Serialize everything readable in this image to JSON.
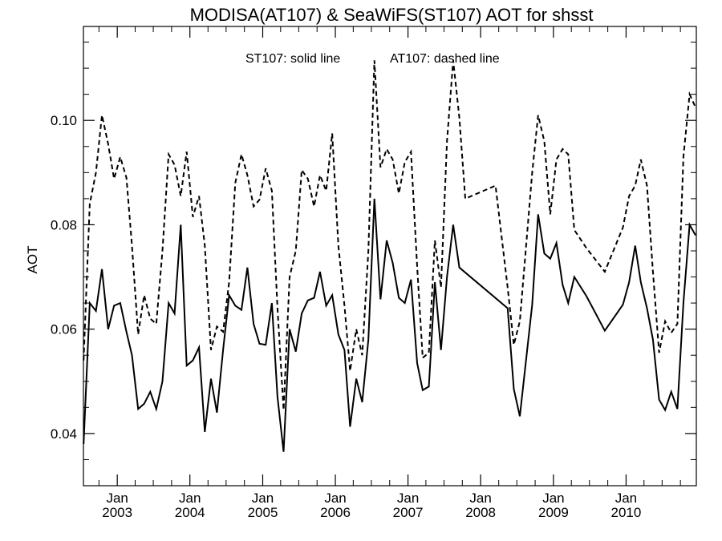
{
  "chart_data": {
    "type": "line",
    "title": "MODISA(AT107) & SeaWiFS(ST107)  AOT for shsst",
    "xlabel": "",
    "ylabel": "AOT",
    "xlim": [
      "2002-07-15",
      "2010-12-20"
    ],
    "ylim": [
      0.03,
      0.118
    ],
    "y_ticks": [
      0.04,
      0.06,
      0.08,
      0.1
    ],
    "y_tick_labels": [
      "0.04",
      "0.06",
      "0.08",
      "0.10"
    ],
    "x_ticks": [
      {
        "month": "Jan",
        "year": "2003",
        "date": "2003-01-01"
      },
      {
        "month": "Jan",
        "year": "2004",
        "date": "2004-01-01"
      },
      {
        "month": "Jan",
        "year": "2005",
        "date": "2005-01-01"
      },
      {
        "month": "Jan",
        "year": "2006",
        "date": "2006-01-01"
      },
      {
        "month": "Jan",
        "year": "2007",
        "date": "2007-01-01"
      },
      {
        "month": "Jan",
        "year": "2008",
        "date": "2008-01-01"
      },
      {
        "month": "Jan",
        "year": "2009",
        "date": "2009-01-01"
      },
      {
        "month": "Jan",
        "year": "2010",
        "date": "2010-01-01"
      }
    ],
    "grid": false,
    "legend": {
      "solid": "ST107: solid line",
      "dashed": "AT107: dashed line",
      "placement": "top-center"
    },
    "series": [
      {
        "name": "ST107",
        "style": "solid",
        "color": "#000000",
        "points": [
          [
            "2002-07-16",
            0.038
          ],
          [
            "2002-08-16",
            0.065
          ],
          [
            "2002-09-16",
            0.0635
          ],
          [
            "2002-10-16",
            0.0715
          ],
          [
            "2002-11-16",
            0.06
          ],
          [
            "2002-12-16",
            0.0645
          ],
          [
            "2003-01-16",
            0.065
          ],
          [
            "2003-02-16",
            0.0595
          ],
          [
            "2003-03-16",
            0.055
          ],
          [
            "2003-04-16",
            0.0447
          ],
          [
            "2003-05-16",
            0.0457
          ],
          [
            "2003-06-16",
            0.048
          ],
          [
            "2003-07-16",
            0.0447
          ],
          [
            "2003-08-16",
            0.05
          ],
          [
            "2003-09-16",
            0.065
          ],
          [
            "2003-10-16",
            0.063
          ],
          [
            "2003-11-16",
            0.08
          ],
          [
            "2003-12-16",
            0.053
          ],
          [
            "2004-01-16",
            0.054
          ],
          [
            "2004-02-16",
            0.0565
          ],
          [
            "2004-03-16",
            0.0403
          ],
          [
            "2004-04-16",
            0.0505
          ],
          [
            "2004-05-16",
            0.044
          ],
          [
            "2004-06-16",
            0.056
          ],
          [
            "2004-07-16",
            0.0665
          ],
          [
            "2004-08-16",
            0.0645
          ],
          [
            "2004-09-16",
            0.0637
          ],
          [
            "2004-10-16",
            0.0718
          ],
          [
            "2004-11-16",
            0.061
          ],
          [
            "2004-12-16",
            0.0572
          ],
          [
            "2005-01-16",
            0.057
          ],
          [
            "2005-02-16",
            0.065
          ],
          [
            "2005-03-16",
            0.047
          ],
          [
            "2005-04-16",
            0.0365
          ],
          [
            "2005-05-16",
            0.06
          ],
          [
            "2005-06-16",
            0.0557
          ],
          [
            "2005-07-16",
            0.063
          ],
          [
            "2005-08-16",
            0.0655
          ],
          [
            "2005-09-16",
            0.066
          ],
          [
            "2005-10-16",
            0.071
          ],
          [
            "2005-11-16",
            0.0645
          ],
          [
            "2005-12-16",
            0.0665
          ],
          [
            "2006-01-16",
            0.059
          ],
          [
            "2006-02-16",
            0.056
          ],
          [
            "2006-03-16",
            0.0413
          ],
          [
            "2006-04-16",
            0.0505
          ],
          [
            "2006-05-16",
            0.046
          ],
          [
            "2006-06-16",
            0.058
          ],
          [
            "2006-07-16",
            0.085
          ],
          [
            "2006-08-16",
            0.0657
          ],
          [
            "2006-09-16",
            0.077
          ],
          [
            "2006-10-16",
            0.0727
          ],
          [
            "2006-11-16",
            0.066
          ],
          [
            "2006-12-16",
            0.065
          ],
          [
            "2007-01-16",
            0.0695
          ],
          [
            "2007-02-16",
            0.0535
          ],
          [
            "2007-03-16",
            0.0483
          ],
          [
            "2007-04-16",
            0.049
          ],
          [
            "2007-05-16",
            0.069
          ],
          [
            "2007-06-16",
            0.056
          ],
          [
            "2007-07-16",
            0.07
          ],
          [
            "2007-08-16",
            0.08
          ],
          [
            "2007-09-16",
            0.0718
          ],
          [
            "2008-05-16",
            0.064
          ],
          [
            "2008-06-16",
            0.0485
          ],
          [
            "2008-07-16",
            0.0433
          ],
          [
            "2008-09-16",
            0.0647
          ],
          [
            "2008-10-16",
            0.082
          ],
          [
            "2008-11-16",
            0.0745
          ],
          [
            "2008-12-16",
            0.0735
          ],
          [
            "2009-01-16",
            0.0765
          ],
          [
            "2009-02-16",
            0.0685
          ],
          [
            "2009-03-16",
            0.065
          ],
          [
            "2009-04-16",
            0.07
          ],
          [
            "2009-06-16",
            0.0663
          ],
          [
            "2009-09-16",
            0.0597
          ],
          [
            "2009-12-16",
            0.0647
          ],
          [
            "2010-01-16",
            0.069
          ],
          [
            "2010-02-16",
            0.076
          ],
          [
            "2010-03-16",
            0.069
          ],
          [
            "2010-04-16",
            0.064
          ],
          [
            "2010-05-16",
            0.058
          ],
          [
            "2010-06-16",
            0.0465
          ],
          [
            "2010-07-16",
            0.0445
          ],
          [
            "2010-08-16",
            0.048
          ],
          [
            "2010-09-16",
            0.0447
          ],
          [
            "2010-10-16",
            0.065
          ],
          [
            "2010-11-16",
            0.08
          ],
          [
            "2010-12-16",
            0.078
          ]
        ]
      },
      {
        "name": "AT107",
        "style": "dashed",
        "color": "#000000",
        "points": [
          [
            "2002-07-16",
            0.054
          ],
          [
            "2002-08-16",
            0.084
          ],
          [
            "2002-09-16",
            0.09
          ],
          [
            "2002-10-16",
            0.101
          ],
          [
            "2002-11-16",
            0.0955
          ],
          [
            "2002-12-16",
            0.0888
          ],
          [
            "2003-01-16",
            0.093
          ],
          [
            "2003-02-16",
            0.089
          ],
          [
            "2003-03-16",
            0.076
          ],
          [
            "2003-04-16",
            0.059
          ],
          [
            "2003-05-16",
            0.0665
          ],
          [
            "2003-06-16",
            0.062
          ],
          [
            "2003-07-16",
            0.061
          ],
          [
            "2003-08-16",
            0.075
          ],
          [
            "2003-09-16",
            0.0935
          ],
          [
            "2003-10-16",
            0.0915
          ],
          [
            "2003-11-16",
            0.0855
          ],
          [
            "2003-12-16",
            0.094
          ],
          [
            "2004-01-16",
            0.0815
          ],
          [
            "2004-02-16",
            0.0855
          ],
          [
            "2004-03-16",
            0.076
          ],
          [
            "2004-04-16",
            0.056
          ],
          [
            "2004-05-16",
            0.0605
          ],
          [
            "2004-06-16",
            0.0595
          ],
          [
            "2004-07-16",
            0.069
          ],
          [
            "2004-08-16",
            0.088
          ],
          [
            "2004-09-16",
            0.0935
          ],
          [
            "2004-10-16",
            0.0895
          ],
          [
            "2004-11-16",
            0.0835
          ],
          [
            "2004-12-16",
            0.0848
          ],
          [
            "2005-01-16",
            0.0908
          ],
          [
            "2005-02-16",
            0.0865
          ],
          [
            "2005-03-16",
            0.064
          ],
          [
            "2005-04-16",
            0.0445
          ],
          [
            "2005-05-16",
            0.07
          ],
          [
            "2005-06-16",
            0.075
          ],
          [
            "2005-07-16",
            0.0905
          ],
          [
            "2005-08-16",
            0.0888
          ],
          [
            "2005-09-16",
            0.0835
          ],
          [
            "2005-10-16",
            0.0895
          ],
          [
            "2005-11-16",
            0.0865
          ],
          [
            "2005-12-16",
            0.0975
          ],
          [
            "2006-01-16",
            0.076
          ],
          [
            "2006-02-16",
            0.0645
          ],
          [
            "2006-03-16",
            0.052
          ],
          [
            "2006-04-16",
            0.06
          ],
          [
            "2006-05-16",
            0.055
          ],
          [
            "2006-06-16",
            0.075
          ],
          [
            "2006-07-16",
            0.1115
          ],
          [
            "2006-08-16",
            0.091
          ],
          [
            "2006-09-16",
            0.0945
          ],
          [
            "2006-10-16",
            0.0925
          ],
          [
            "2006-11-16",
            0.086
          ],
          [
            "2006-12-16",
            0.092
          ],
          [
            "2007-01-16",
            0.094
          ],
          [
            "2007-02-16",
            0.072
          ],
          [
            "2007-03-16",
            0.0545
          ],
          [
            "2007-04-16",
            0.0555
          ],
          [
            "2007-05-16",
            0.077
          ],
          [
            "2007-06-16",
            0.068
          ],
          [
            "2007-07-16",
            0.096
          ],
          [
            "2007-08-16",
            0.1115
          ],
          [
            "2007-09-16",
            0.1005
          ],
          [
            "2007-10-16",
            0.085
          ],
          [
            "2008-03-16",
            0.0875
          ],
          [
            "2008-05-16",
            0.068
          ],
          [
            "2008-06-16",
            0.057
          ],
          [
            "2008-07-16",
            0.0615
          ],
          [
            "2008-09-16",
            0.09
          ],
          [
            "2008-10-16",
            0.101
          ],
          [
            "2008-11-16",
            0.096
          ],
          [
            "2008-12-16",
            0.082
          ],
          [
            "2009-01-16",
            0.0925
          ],
          [
            "2009-02-16",
            0.0945
          ],
          [
            "2009-03-16",
            0.0935
          ],
          [
            "2009-04-16",
            0.079
          ],
          [
            "2009-06-16",
            0.0755
          ],
          [
            "2009-09-16",
            0.071
          ],
          [
            "2009-12-16",
            0.0795
          ],
          [
            "2010-01-16",
            0.0855
          ],
          [
            "2010-02-16",
            0.0875
          ],
          [
            "2010-03-16",
            0.0925
          ],
          [
            "2010-04-16",
            0.0875
          ],
          [
            "2010-05-16",
            0.071
          ],
          [
            "2010-06-16",
            0.0555
          ],
          [
            "2010-07-16",
            0.0615
          ],
          [
            "2010-08-16",
            0.0593
          ],
          [
            "2010-09-16",
            0.061
          ],
          [
            "2010-10-16",
            0.093
          ],
          [
            "2010-11-16",
            0.105
          ],
          [
            "2010-12-16",
            0.1025
          ]
        ]
      }
    ]
  }
}
